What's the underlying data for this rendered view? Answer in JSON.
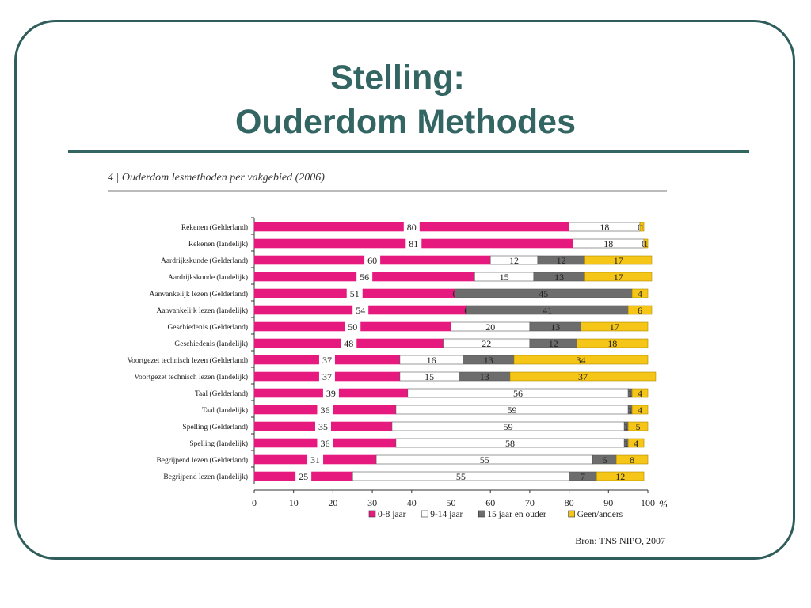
{
  "slide": {
    "title_line1": "Stelling:",
    "title_line2": "Ouderdom Methodes"
  },
  "figure": {
    "caption": "4 | Ouderdom lesmethoden per vakgebied (2006)",
    "source": "Bron: TNS NIPO, 2007"
  },
  "colors": {
    "frame": "#2f5d5b",
    "title": "#336663",
    "s1": "#e6197e",
    "s2": "#ffffff",
    "s3": "#6d6d6d",
    "s4": "#f5c518"
  },
  "chart_data": {
    "type": "bar",
    "orientation": "horizontal",
    "stacked": true,
    "categories": [
      "Rekenen (Gelderland)",
      "Rekenen (landelijk)",
      "Aardrijkskunde (Gelderland)",
      "Aardrijkskunde (landelijk)",
      "Aanvankelijk lezen (Gelderland)",
      "Aanvankelijk lezen (landelijk)",
      "Geschiedenis (Gelderland)",
      "Geschiedenis (landelijk)",
      "Voortgezet technisch lezen (Gelderland)",
      "Voortgezet technisch lezen (landelijk)",
      "Taal (Gelderland)",
      "Taal (landelijk)",
      "Spelling (Gelderland)",
      "Spelling (landelijk)",
      "Begrijpend lezen (Gelderland)",
      "Begrijpend lezen (landelijk)"
    ],
    "series": [
      {
        "name": "0-8 jaar",
        "values": [
          80,
          81,
          60,
          56,
          51,
          54,
          50,
          48,
          37,
          37,
          39,
          36,
          35,
          36,
          31,
          25
        ]
      },
      {
        "name": "9-14 jaar",
        "values": [
          18,
          18,
          12,
          15,
          0,
          0,
          20,
          22,
          16,
          15,
          56,
          59,
          59,
          58,
          55,
          55
        ]
      },
      {
        "name": "15 jaar en ouder",
        "values": [
          0,
          0,
          12,
          13,
          45,
          41,
          13,
          12,
          13,
          13,
          1,
          1,
          1,
          1,
          6,
          7
        ]
      },
      {
        "name": "Geen/anders",
        "values": [
          1,
          1,
          17,
          17,
          4,
          6,
          17,
          18,
          34,
          37,
          4,
          4,
          5,
          4,
          8,
          12
        ]
      }
    ],
    "xlim": [
      0,
      100
    ],
    "xticks": [
      0,
      10,
      20,
      30,
      40,
      50,
      60,
      70,
      80,
      90,
      100
    ],
    "xunit": "%",
    "legend": "bottom",
    "grid": false
  }
}
